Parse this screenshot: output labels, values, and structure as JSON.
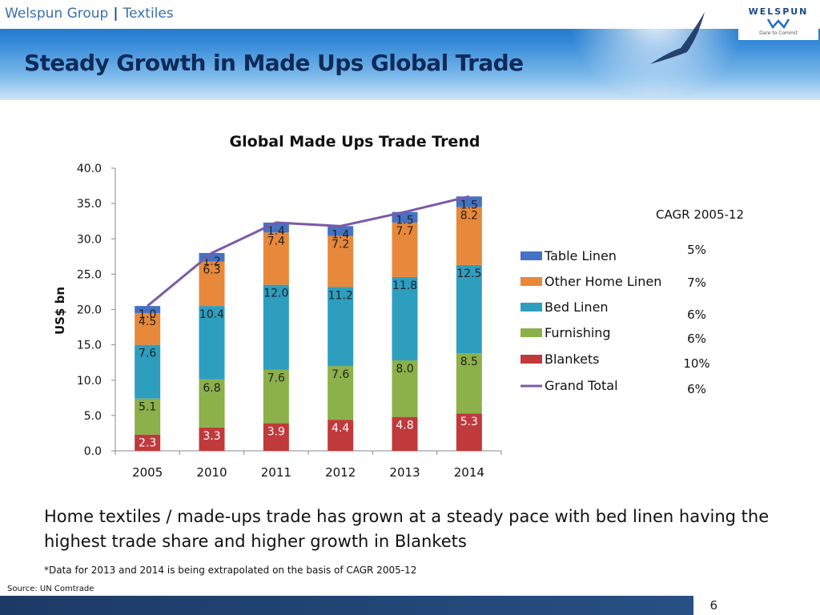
{
  "header": {
    "group": "Welspun Group",
    "separator": "|",
    "section": "Textiles",
    "title": "Steady Growth in Made Ups Global Trade",
    "logo_text": "WELSPUN",
    "logo_tagline": "Dare to Commit"
  },
  "colors": {
    "table_linen": "#4472C4",
    "other_home_linen": "#E8883A",
    "bed_linen": "#2E9EBF",
    "furnishing": "#8CB04A",
    "blankets": "#C0393B",
    "grand_total": "#7B5BA6"
  },
  "chart_data": {
    "type": "bar",
    "stacked": true,
    "title": "Global Made Ups Trade Trend",
    "ylabel": "US$ bn",
    "xlabel": "",
    "ylim": [
      0,
      40
    ],
    "yticks": [
      "0.0",
      "5.0",
      "10.0",
      "15.0",
      "20.0",
      "25.0",
      "30.0",
      "35.0",
      "40.0"
    ],
    "categories": [
      "2005",
      "2010",
      "2011",
      "2012",
      "2013",
      "2014"
    ],
    "series": [
      {
        "name": "Blankets",
        "key": "blankets",
        "values": [
          2.3,
          3.3,
          3.9,
          4.4,
          4.8,
          5.3
        ],
        "labels": [
          "2.3",
          "3.3",
          "3.9",
          "4.4",
          "4.8",
          "5.3"
        ],
        "cagr": "10%"
      },
      {
        "name": "Furnishing",
        "key": "furnishing",
        "values": [
          5.1,
          6.8,
          7.6,
          7.6,
          8.0,
          8.5
        ],
        "labels": [
          "5.1",
          "6.8",
          "7.6",
          "7.6",
          "8.0",
          "8.5"
        ],
        "cagr": "6%"
      },
      {
        "name": "Bed Linen",
        "key": "bed_linen",
        "values": [
          7.6,
          10.4,
          12.0,
          11.2,
          11.8,
          12.5
        ],
        "labels": [
          "7.6",
          "10.4",
          "12.0",
          "11.2",
          "11.8",
          "12.5"
        ],
        "cagr": "6%"
      },
      {
        "name": "Other Home Linen",
        "key": "other_home_linen",
        "values": [
          4.5,
          6.3,
          7.4,
          7.2,
          7.7,
          8.2
        ],
        "labels": [
          "4.5",
          "6.3",
          "7.4",
          "7.2",
          "7.7",
          "8.2"
        ],
        "cagr": "7%"
      },
      {
        "name": "Table Linen",
        "key": "table_linen",
        "values": [
          1.0,
          1.2,
          1.4,
          1.4,
          1.5,
          1.5
        ],
        "labels": [
          "1.0",
          "1.2",
          "1.4",
          "1.4",
          "1.5",
          "1.5"
        ],
        "cagr": "5%"
      }
    ],
    "line": {
      "name": "Grand Total",
      "key": "grand_total",
      "values": [
        20.5,
        28.0,
        32.3,
        31.8,
        33.8,
        36.0
      ],
      "cagr": "6%"
    },
    "legend": {
      "placement": "right",
      "cagr_title": "CAGR 2005-12",
      "items": [
        {
          "name": "Table Linen",
          "key": "table_linen",
          "kind": "box",
          "cagr": "5%"
        },
        {
          "name": "Other Home Linen",
          "key": "other_home_linen",
          "kind": "box",
          "cagr": "7%"
        },
        {
          "name": "Bed Linen",
          "key": "bed_linen",
          "kind": "box",
          "cagr": "6%"
        },
        {
          "name": "Furnishing",
          "key": "furnishing",
          "kind": "box",
          "cagr": "6%"
        },
        {
          "name": "Blankets",
          "key": "blankets",
          "kind": "box",
          "cagr": "10%"
        },
        {
          "name": "Grand Total",
          "key": "grand_total",
          "kind": "line",
          "cagr": "6%"
        }
      ]
    }
  },
  "body": {
    "summary": "Home textiles / made-ups trade has grown at a steady pace with bed linen having the highest trade share and higher growth in Blankets",
    "footnote": "*Data for 2013 and 2014 is being extrapolated on the basis of CAGR 2005-12",
    "source": "Source: UN Comtrade"
  },
  "footer": {
    "page_number": "6"
  }
}
